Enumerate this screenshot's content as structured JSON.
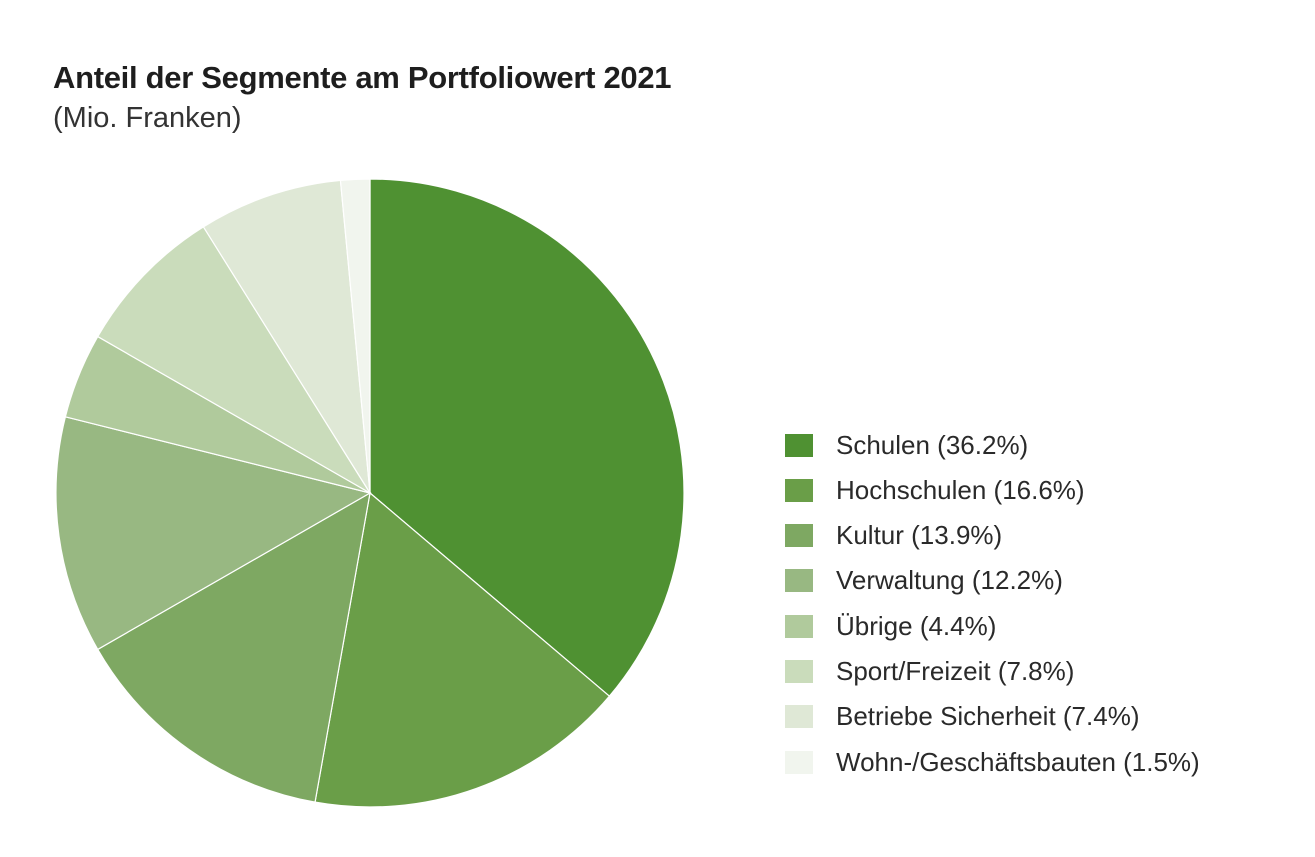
{
  "chart_data": {
    "type": "pie",
    "title": "Anteil der Segmente am Portfoliowert 2021",
    "subtitle": "(Mio. Franken)",
    "legend_position": "right",
    "slices": [
      {
        "name": "Schulen",
        "value": 36.2,
        "label": "Schulen (36.2%)",
        "color": "#4f9132"
      },
      {
        "name": "Hochschulen",
        "value": 16.6,
        "label": "Hochschulen (16.6%)",
        "color": "#6a9e48"
      },
      {
        "name": "Kultur",
        "value": 13.9,
        "label": "Kultur (13.9%)",
        "color": "#7ea862"
      },
      {
        "name": "Verwaltung",
        "value": 12.2,
        "label": "Verwaltung (12.2%)",
        "color": "#98b882"
      },
      {
        "name": "Übrige",
        "value": 4.4,
        "label": "Übrige (4.4%)",
        "color": "#b0ca9c"
      },
      {
        "name": "Sport/Freizeit",
        "value": 7.8,
        "label": "Sport/Freizeit (7.8%)",
        "color": "#cadcbb"
      },
      {
        "name": "Betriebe Sicherheit",
        "value": 7.4,
        "label": "Betriebe Sicherheit (7.4%)",
        "color": "#dfe8d6"
      },
      {
        "name": "Wohn-/Geschäftsbauten",
        "value": 1.5,
        "label": "Wohn-/Geschäftsbauten (1.5%)",
        "color": "#f1f5ee"
      }
    ]
  }
}
